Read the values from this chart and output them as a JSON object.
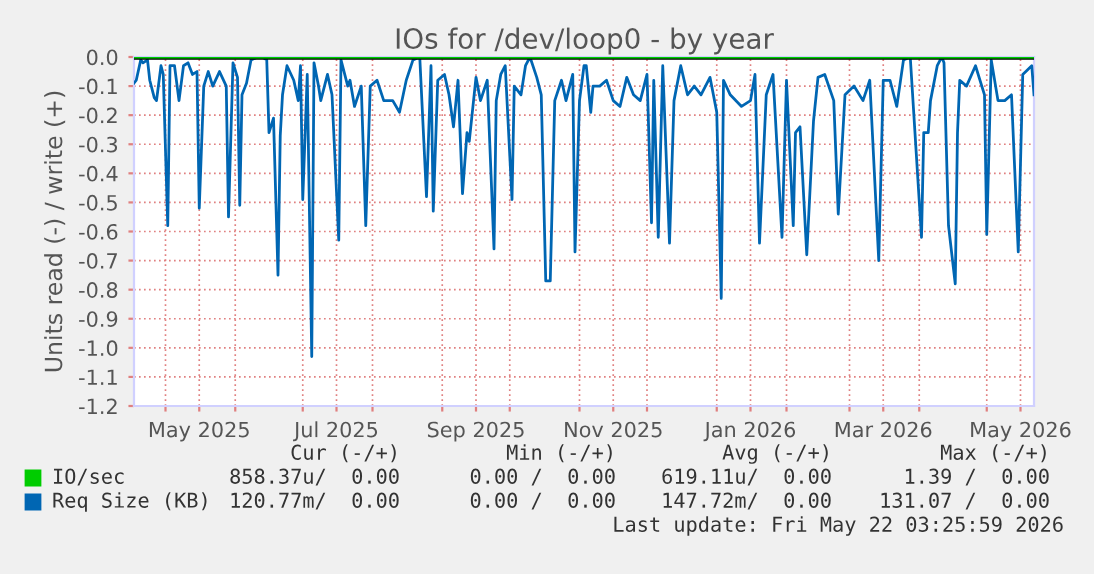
{
  "chart_data": {
    "type": "line",
    "title": "IOs for /dev/loop0 - by year",
    "ylabel": "Units read (-) / write (+)",
    "xlim": [
      "2025-04-17",
      "2026-05-22"
    ],
    "ylim": [
      -1.2,
      0.0
    ],
    "yticks": [
      {
        "value": -1.2,
        "label": "-1.2"
      },
      {
        "value": -1.1,
        "label": "-1.1"
      },
      {
        "value": -1.0,
        "label": "-1.0"
      },
      {
        "value": -0.9,
        "label": "-0.9"
      },
      {
        "value": -0.8,
        "label": "-0.8"
      },
      {
        "value": -0.7,
        "label": "-0.7"
      },
      {
        "value": -0.6,
        "label": "-0.6"
      },
      {
        "value": -0.5,
        "label": "-0.5"
      },
      {
        "value": -0.4,
        "label": "-0.4"
      },
      {
        "value": -0.3,
        "label": "-0.3"
      },
      {
        "value": -0.2,
        "label": "-0.2"
      },
      {
        "value": -0.1,
        "label": "-0.1"
      },
      {
        "value": 0.0,
        "label": "0.0"
      }
    ],
    "xticks": [
      {
        "value": "2025-05-01",
        "label": null
      },
      {
        "value": "2025-05-16",
        "label": "May 2025"
      },
      {
        "value": "2025-06-01",
        "label": null
      },
      {
        "value": "2025-07-01",
        "label": null
      },
      {
        "value": "2025-07-16",
        "label": "Jul 2025"
      },
      {
        "value": "2025-08-01",
        "label": null
      },
      {
        "value": "2025-09-01",
        "label": null
      },
      {
        "value": "2025-09-16",
        "label": "Sep 2025"
      },
      {
        "value": "2025-10-01",
        "label": null
      },
      {
        "value": "2025-11-01",
        "label": null
      },
      {
        "value": "2025-11-16",
        "label": "Nov 2025"
      },
      {
        "value": "2025-12-01",
        "label": null
      },
      {
        "value": "2026-01-01",
        "label": null
      },
      {
        "value": "2026-01-16",
        "label": "Jan 2026"
      },
      {
        "value": "2026-02-01",
        "label": null
      },
      {
        "value": "2026-03-01",
        "label": null
      },
      {
        "value": "2026-03-16",
        "label": "Mar 2026"
      },
      {
        "value": "2026-04-01",
        "label": null
      },
      {
        "value": "2026-05-01",
        "label": null
      },
      {
        "value": "2026-05-16",
        "label": "May 2026"
      }
    ],
    "grid": true,
    "legend": "bottom",
    "ref_lines": [
      {
        "axis": "y",
        "value": 0.0,
        "color": "#000000"
      }
    ],
    "series": [
      {
        "name": "IO/sec",
        "color": "#00cc00",
        "x": [
          "2025-04-17",
          "2026-05-22"
        ],
        "values": [
          0.0,
          0.0
        ]
      },
      {
        "name": "Req Size (KB)",
        "color": "#0066b3",
        "x": [
          "2025-04-17",
          "2025-04-18",
          "2025-04-20",
          "2025-04-21",
          "2025-04-23",
          "2025-04-24",
          "2025-04-26",
          "2025-04-27",
          "2025-04-29",
          "2025-04-30",
          "2025-05-02",
          "2025-05-03",
          "2025-05-05",
          "2025-05-07",
          "2025-05-09",
          "2025-05-11",
          "2025-05-13",
          "2025-05-15",
          "2025-05-16",
          "2025-05-18",
          "2025-05-20",
          "2025-05-22",
          "2025-05-25",
          "2025-05-28",
          "2025-05-29",
          "2025-05-31",
          "2025-06-02",
          "2025-06-03",
          "2025-06-04",
          "2025-06-06",
          "2025-06-08",
          "2025-06-11",
          "2025-06-13",
          "2025-06-15",
          "2025-06-16",
          "2025-06-18",
          "2025-06-20",
          "2025-06-21",
          "2025-06-22",
          "2025-06-24",
          "2025-06-27",
          "2025-06-29",
          "2025-06-30",
          "2025-07-01",
          "2025-07-03",
          "2025-07-05",
          "2025-07-06",
          "2025-07-08",
          "2025-07-09",
          "2025-07-12",
          "2025-07-14",
          "2025-07-17",
          "2025-07-18",
          "2025-07-21",
          "2025-07-22",
          "2025-07-24",
          "2025-07-27",
          "2025-07-29",
          "2025-07-31",
          "2025-08-03",
          "2025-08-06",
          "2025-08-10",
          "2025-08-13",
          "2025-08-16",
          "2025-08-19",
          "2025-08-22",
          "2025-08-25",
          "2025-08-27",
          "2025-08-28",
          "2025-08-30",
          "2025-09-02",
          "2025-09-04",
          "2025-09-06",
          "2025-09-08",
          "2025-09-10",
          "2025-09-12",
          "2025-09-13",
          "2025-09-16",
          "2025-09-18",
          "2025-09-21",
          "2025-09-24",
          "2025-09-25",
          "2025-09-27",
          "2025-09-29",
          "2025-10-02",
          "2025-10-03",
          "2025-10-06",
          "2025-10-08",
          "2025-10-10",
          "2025-10-13",
          "2025-10-15",
          "2025-10-17",
          "2025-10-19",
          "2025-10-21",
          "2025-10-24",
          "2025-10-26",
          "2025-10-29",
          "2025-10-30",
          "2025-11-01",
          "2025-11-03",
          "2025-11-04",
          "2025-11-06",
          "2025-11-07",
          "2025-11-10",
          "2025-11-13",
          "2025-11-16",
          "2025-11-19",
          "2025-11-22",
          "2025-11-25",
          "2025-11-28",
          "2025-12-01",
          "2025-12-03",
          "2025-12-04",
          "2025-12-06",
          "2025-12-08",
          "2025-12-11",
          "2025-12-13",
          "2025-12-16",
          "2025-12-19",
          "2025-12-22",
          "2025-12-25",
          "2025-12-29",
          "2026-01-01",
          "2026-01-03",
          "2026-01-04",
          "2026-01-07",
          "2026-01-12",
          "2026-01-16",
          "2026-01-18",
          "2026-01-20",
          "2026-01-23",
          "2026-01-26",
          "2026-01-30",
          "2026-02-01",
          "2026-02-04",
          "2026-02-05",
          "2026-02-07",
          "2026-02-10",
          "2026-02-13",
          "2026-02-15",
          "2026-02-18",
          "2026-02-22",
          "2026-02-24",
          "2026-02-27",
          "2026-03-03",
          "2026-03-07",
          "2026-03-10",
          "2026-03-14",
          "2026-03-16",
          "2026-03-19",
          "2026-03-22",
          "2026-03-25",
          "2026-03-28",
          "2026-04-02",
          "2026-04-03",
          "2026-04-05",
          "2026-04-06",
          "2026-04-09",
          "2026-04-11",
          "2026-04-12",
          "2026-04-14",
          "2026-04-17",
          "2026-04-18",
          "2026-04-19",
          "2026-04-22",
          "2026-04-26",
          "2026-04-30",
          "2026-05-01",
          "2026-05-03",
          "2026-05-06",
          "2026-05-09",
          "2026-05-12",
          "2026-05-15",
          "2026-05-17",
          "2026-05-21",
          "2026-05-22"
        ],
        "values": [
          -0.09,
          -0.08,
          -0.01,
          -0.02,
          -0.01,
          -0.08,
          -0.14,
          -0.15,
          -0.03,
          -0.06,
          -0.58,
          -0.03,
          -0.03,
          -0.15,
          -0.03,
          -0.02,
          -0.06,
          -0.05,
          -0.52,
          -0.1,
          -0.05,
          -0.1,
          -0.05,
          -0.1,
          -0.55,
          -0.02,
          -0.07,
          -0.51,
          -0.13,
          -0.09,
          -0.01,
          0.0,
          0.0,
          -0.01,
          -0.26,
          -0.21,
          -0.75,
          -0.27,
          -0.13,
          -0.03,
          -0.08,
          -0.15,
          -0.03,
          -0.49,
          -0.06,
          -1.03,
          -0.02,
          -0.1,
          -0.15,
          -0.06,
          -0.13,
          -0.63,
          -0.01,
          -0.1,
          -0.08,
          -0.17,
          -0.1,
          -0.58,
          -0.1,
          -0.08,
          -0.15,
          -0.15,
          -0.19,
          -0.08,
          -0.01,
          0.0,
          -0.48,
          -0.03,
          -0.53,
          -0.08,
          -0.06,
          -0.13,
          -0.24,
          -0.08,
          -0.47,
          -0.26,
          -0.29,
          -0.07,
          -0.15,
          -0.08,
          -0.66,
          -0.15,
          -0.06,
          -0.03,
          -0.49,
          -0.1,
          -0.13,
          -0.03,
          0.0,
          -0.07,
          -0.13,
          -0.77,
          -0.77,
          -0.15,
          -0.08,
          -0.15,
          -0.06,
          -0.67,
          -0.15,
          -0.03,
          -0.03,
          -0.19,
          -0.1,
          -0.1,
          -0.08,
          -0.15,
          -0.17,
          -0.07,
          -0.13,
          -0.15,
          -0.06,
          -0.57,
          -0.08,
          -0.62,
          -0.03,
          -0.64,
          -0.15,
          -0.03,
          -0.13,
          -0.1,
          -0.13,
          -0.07,
          -0.19,
          -0.83,
          -0.08,
          -0.13,
          -0.17,
          -0.15,
          -0.06,
          -0.64,
          -0.13,
          -0.06,
          -0.62,
          -0.08,
          -0.58,
          -0.26,
          -0.24,
          -0.68,
          -0.22,
          -0.07,
          -0.06,
          -0.15,
          -0.54,
          -0.13,
          -0.1,
          -0.15,
          -0.08,
          -0.7,
          -0.08,
          -0.08,
          -0.17,
          -0.01,
          0.0,
          -0.62,
          -0.26,
          -0.26,
          -0.15,
          -0.03,
          0.0,
          -0.02,
          -0.58,
          -0.78,
          -0.26,
          -0.08,
          -0.1,
          -0.03,
          -0.13,
          -0.61,
          -0.01,
          -0.15,
          -0.15,
          -0.13,
          -0.67,
          -0.06,
          -0.03,
          -0.13
        ]
      }
    ],
    "annotations": [
      "Cur (-/+)",
      "Min (-/+)",
      "Avg (-/+)",
      "Max (-/+)",
      "858.37u/  0.00",
      "0.00 /  0.00",
      "619.11u/  0.00",
      "1.39 /  0.00",
      "120.77m/  0.00",
      "0.00 /  0.00",
      "147.72m/  0.00",
      "131.07 /  0.00",
      "Last update: Fri May 22 03:25:59 2026"
    ]
  }
}
